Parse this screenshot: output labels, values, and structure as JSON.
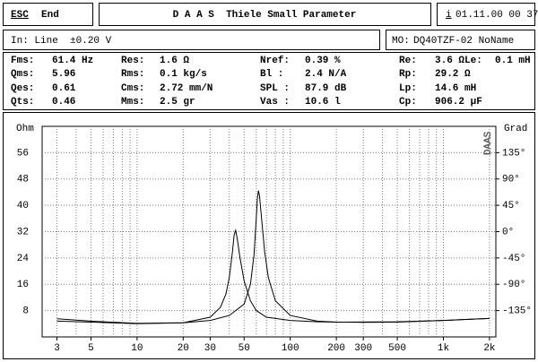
{
  "header": {
    "esc_key": "ESC",
    "esc_label": "End",
    "title": "D A A S  Thiele Small Parameter",
    "info_key": "i",
    "datetime": "01.11.00 00 37"
  },
  "status": {
    "input": "In: Line  ±0.20 V",
    "model_key": "MO:",
    "model": "DQ40TZF-02 NoName"
  },
  "parameters": [
    [
      {
        "label": "Fms:",
        "value": "61.4 Hz"
      },
      {
        "label": "Res:",
        "value": "1.6 Ω"
      },
      {
        "label": "Nref:",
        "value": "0.39 %"
      },
      {
        "label": "Re:",
        "value": "3.6 Ω"
      },
      {
        "label": "Le:",
        "value": "0.1 mH"
      }
    ],
    [
      {
        "label": "Qms:",
        "value": "5.96"
      },
      {
        "label": "Rms:",
        "value": "0.1 kg/s"
      },
      {
        "label": "Bl :",
        "value": "2.4 N/A"
      },
      {
        "label": "Rp:",
        "value": "29.2 Ω"
      }
    ],
    [
      {
        "label": "Qes:",
        "value": "0.61"
      },
      {
        "label": "Cms:",
        "value": "2.72 mm/N"
      },
      {
        "label": "SPL :",
        "value": "87.9 dB"
      },
      {
        "label": "Lp:",
        "value": "14.6 mH"
      }
    ],
    [
      {
        "label": "Qts:",
        "value": "0.46"
      },
      {
        "label": "Mms:",
        "value": "2.5 gr"
      },
      {
        "label": "Vas :",
        "value": "10.6 l"
      },
      {
        "label": "Cp:",
        "value": "906.2 µF"
      }
    ]
  ],
  "chart_data": {
    "type": "line",
    "y_label": "Ohm",
    "y2_label": "Grad",
    "watermark": "DAAS",
    "xscale": "log",
    "xlim": [
      2.4,
      2200
    ],
    "xticks": [
      3,
      5,
      10,
      20,
      30,
      50,
      100,
      200,
      300,
      500,
      {
        "value": 1000,
        "label": "1k"
      },
      {
        "value": 2000,
        "label": "2k"
      }
    ],
    "xgrid": [
      4,
      6,
      7,
      8,
      9,
      40,
      60,
      70,
      80,
      90,
      400,
      600,
      700,
      800,
      900
    ],
    "ylim": [
      0,
      64
    ],
    "yticks": [
      8,
      16,
      24,
      32,
      40,
      48,
      56
    ],
    "y2lim": [
      -180,
      180
    ],
    "y2ticks": [
      {
        "value": 135,
        "label": "135°"
      },
      {
        "value": 90,
        "label": "90°"
      },
      {
        "value": 45,
        "label": "45°"
      },
      {
        "value": 0,
        "label": "0°"
      },
      {
        "value": -45,
        "label": "-45°"
      },
      {
        "value": -90,
        "label": "-90°"
      },
      {
        "value": -135,
        "label": "-135°"
      }
    ],
    "grid": true,
    "series": [
      {
        "color": "#000000",
        "x": [
          3,
          5,
          10,
          20,
          30,
          40,
          50,
          55,
          58,
          60,
          61,
          62,
          63,
          65,
          68,
          72,
          80,
          100,
          150,
          200,
          300,
          500,
          1000,
          2000
        ],
        "values": [
          5.5,
          4.8,
          4.1,
          4.3,
          5,
          6.5,
          10,
          16,
          25,
          36,
          42,
          44.5,
          43,
          36,
          26,
          18,
          11,
          6.5,
          4.8,
          4.5,
          4.4,
          4.5,
          5,
          5.6
        ]
      },
      {
        "color": "#000000",
        "x": [
          3,
          5,
          10,
          20,
          30,
          35,
          38,
          40,
          42,
          43,
          44,
          45,
          47,
          50,
          55,
          60,
          70,
          100,
          150,
          200,
          500,
          1000,
          2000
        ],
        "values": [
          4.8,
          4.5,
          4,
          4.3,
          6,
          9,
          13,
          18,
          26,
          31,
          32.4,
          30,
          24,
          17,
          11,
          8,
          6,
          5,
          4.6,
          4.5,
          4.6,
          5,
          5.6
        ]
      }
    ]
  }
}
